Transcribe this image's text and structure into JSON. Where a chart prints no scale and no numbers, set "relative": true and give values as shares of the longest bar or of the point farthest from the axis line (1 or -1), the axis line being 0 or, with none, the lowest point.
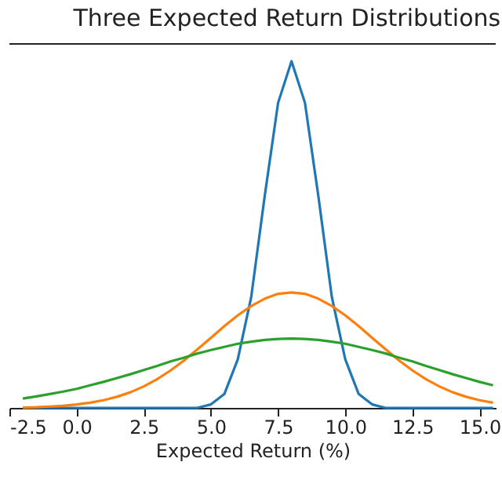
{
  "chart_data": {
    "type": "line",
    "title": "Three Expected Return Distributions",
    "xlabel": "Expected Return (%)",
    "relative": true,
    "xlim": [
      -2.5,
      15.6
    ],
    "xticks": [
      {
        "value": -2.5,
        "label": "-2.5"
      },
      {
        "value": 0,
        "label": "0.0"
      },
      {
        "value": 2.5,
        "label": "2.5"
      },
      {
        "value": 5,
        "label": "5.0"
      },
      {
        "value": 7.5,
        "label": "7.5"
      },
      {
        "value": 10,
        "label": "10.0"
      },
      {
        "value": 12.5,
        "label": "12.5"
      },
      {
        "value": 15,
        "label": "15.0"
      }
    ],
    "x": [
      -2,
      -1.5,
      -1,
      -0.5,
      0,
      0.5,
      1,
      1.5,
      2,
      2.5,
      3,
      3.5,
      4,
      4.5,
      5,
      5.5,
      6,
      6.5,
      7,
      7.5,
      8,
      8.5,
      9,
      9.5,
      10,
      10.5,
      11,
      11.5,
      12,
      12.5,
      13,
      13.5,
      14,
      14.5,
      15,
      15.5
    ],
    "series": [
      {
        "color": "#1f77b4",
        "values": [
          0,
          0,
          0,
          0,
          0,
          0,
          0,
          0,
          0,
          0,
          0,
          0,
          0,
          0,
          0.01,
          0.04,
          0.14,
          0.32,
          0.61,
          0.88,
          1,
          0.88,
          0.61,
          0.32,
          0.14,
          0.04,
          0.01,
          0,
          0,
          0,
          0,
          0,
          0,
          0,
          0,
          0
        ]
      },
      {
        "color": "#ff7f0e",
        "values": [
          0.001,
          0.002,
          0.004,
          0.006,
          0.01,
          0.015,
          0.022,
          0.032,
          0.045,
          0.062,
          0.083,
          0.108,
          0.137,
          0.169,
          0.202,
          0.236,
          0.267,
          0.294,
          0.315,
          0.329,
          0.333,
          0.329,
          0.315,
          0.294,
          0.267,
          0.236,
          0.202,
          0.169,
          0.137,
          0.108,
          0.083,
          0.062,
          0.045,
          0.032,
          0.022,
          0.015
        ]
      },
      {
        "color": "#2ca02c",
        "values": [
          0.027,
          0.033,
          0.04,
          0.047,
          0.055,
          0.065,
          0.075,
          0.086,
          0.097,
          0.109,
          0.121,
          0.134,
          0.145,
          0.157,
          0.167,
          0.176,
          0.185,
          0.191,
          0.196,
          0.199,
          0.2,
          0.199,
          0.196,
          0.191,
          0.185,
          0.176,
          0.167,
          0.157,
          0.145,
          0.134,
          0.121,
          0.109,
          0.097,
          0.086,
          0.075,
          0.065
        ]
      }
    ]
  }
}
